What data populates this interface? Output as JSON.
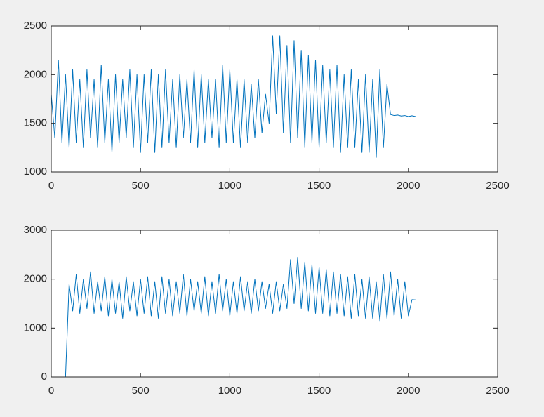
{
  "chart_data": [
    {
      "type": "line",
      "x": [
        0,
        20,
        40,
        60,
        80,
        100,
        120,
        140,
        160,
        180,
        200,
        220,
        240,
        260,
        280,
        300,
        320,
        340,
        360,
        380,
        400,
        420,
        440,
        460,
        480,
        500,
        520,
        540,
        560,
        580,
        600,
        620,
        640,
        660,
        680,
        700,
        720,
        740,
        760,
        780,
        800,
        820,
        840,
        860,
        880,
        900,
        920,
        940,
        960,
        980,
        1000,
        1020,
        1040,
        1060,
        1080,
        1100,
        1120,
        1140,
        1160,
        1180,
        1200,
        1220,
        1240,
        1260,
        1280,
        1300,
        1320,
        1340,
        1360,
        1380,
        1400,
        1420,
        1440,
        1460,
        1480,
        1500,
        1520,
        1540,
        1560,
        1580,
        1600,
        1620,
        1640,
        1660,
        1680,
        1700,
        1720,
        1740,
        1760,
        1780,
        1800,
        1820,
        1840,
        1860,
        1880,
        1900,
        1920,
        1940,
        1960,
        1980,
        2000,
        2020,
        2040
      ],
      "series": [
        {
          "color": "#0072bd",
          "values": [
            1800,
            1350,
            2150,
            1300,
            2000,
            1250,
            2050,
            1300,
            1950,
            1250,
            2050,
            1350,
            1950,
            1250,
            2100,
            1300,
            1950,
            1200,
            2000,
            1300,
            1950,
            1350,
            2050,
            1250,
            2000,
            1200,
            2000,
            1300,
            2050,
            1200,
            2000,
            1250,
            2050,
            1300,
            1950,
            1250,
            2000,
            1350,
            1950,
            1300,
            2050,
            1250,
            2000,
            1300,
            1950,
            1350,
            1950,
            1250,
            2100,
            1300,
            2050,
            1300,
            1950,
            1250,
            1950,
            1300,
            1900,
            1350,
            1950,
            1400,
            1800,
            1500,
            2400,
            1600,
            2400,
            1400,
            2300,
            1300,
            2350,
            1350,
            2250,
            1250,
            2200,
            1300,
            2150,
            1250,
            2100,
            1300,
            2050,
            1250,
            2100,
            1200,
            2000,
            1250,
            2050,
            1250,
            1950,
            1200,
            2000,
            1200,
            1950,
            1150,
            2050,
            1250,
            1900,
            1590,
            1580,
            1585,
            1575,
            1580,
            1570,
            1578,
            1570
          ]
        }
      ],
      "xlim": [
        0,
        2500
      ],
      "xticks": [
        0,
        500,
        1000,
        1500,
        2000,
        2500
      ],
      "ylim": [
        1000,
        2500
      ],
      "yticks": [
        1000,
        1500,
        2000,
        2500
      ]
    },
    {
      "type": "line",
      "x": [
        0,
        20,
        40,
        60,
        80,
        100,
        120,
        140,
        160,
        180,
        200,
        220,
        240,
        260,
        280,
        300,
        320,
        340,
        360,
        380,
        400,
        420,
        440,
        460,
        480,
        500,
        520,
        540,
        560,
        580,
        600,
        620,
        640,
        660,
        680,
        700,
        720,
        740,
        760,
        780,
        800,
        820,
        840,
        860,
        880,
        900,
        920,
        940,
        960,
        980,
        1000,
        1020,
        1040,
        1060,
        1080,
        1100,
        1120,
        1140,
        1160,
        1180,
        1200,
        1220,
        1240,
        1260,
        1280,
        1300,
        1320,
        1340,
        1360,
        1380,
        1400,
        1420,
        1440,
        1460,
        1480,
        1500,
        1520,
        1540,
        1560,
        1580,
        1600,
        1620,
        1640,
        1660,
        1680,
        1700,
        1720,
        1740,
        1760,
        1780,
        1800,
        1820,
        1840,
        1860,
        1880,
        1900,
        1920,
        1940,
        1960,
        1980,
        2000,
        2020,
        2040
      ],
      "series": [
        {
          "color": "#0072bd",
          "values": [
            0,
            0,
            0,
            0,
            0,
            1900,
            1350,
            2100,
            1300,
            2000,
            1400,
            2150,
            1300,
            1950,
            1350,
            2050,
            1250,
            2000,
            1300,
            1950,
            1200,
            2050,
            1350,
            1950,
            1250,
            2000,
            1300,
            2050,
            1250,
            1950,
            1200,
            2050,
            1300,
            2000,
            1250,
            1950,
            1300,
            2100,
            1250,
            2000,
            1350,
            1950,
            1300,
            2050,
            1250,
            1950,
            1300,
            2100,
            1350,
            2000,
            1250,
            1950,
            1300,
            2050,
            1350,
            1950,
            1300,
            2000,
            1350,
            1950,
            1400,
            1900,
            1300,
            1950,
            1350,
            1900,
            1400,
            2400,
            1500,
            2450,
            1400,
            2350,
            1350,
            2300,
            1300,
            2250,
            1300,
            2200,
            1250,
            2150,
            1300,
            2100,
            1250,
            2050,
            1200,
            2100,
            1250,
            2000,
            1200,
            2050,
            1200,
            1950,
            1150,
            2100,
            1200,
            2150,
            1250,
            2000,
            1200,
            1950,
            1250,
            1580,
            1575
          ]
        }
      ],
      "xlim": [
        0,
        2500
      ],
      "xticks": [
        0,
        500,
        1000,
        1500,
        2000,
        2500
      ],
      "ylim": [
        0,
        3000
      ],
      "yticks": [
        0,
        1000,
        2000,
        3000
      ]
    }
  ]
}
